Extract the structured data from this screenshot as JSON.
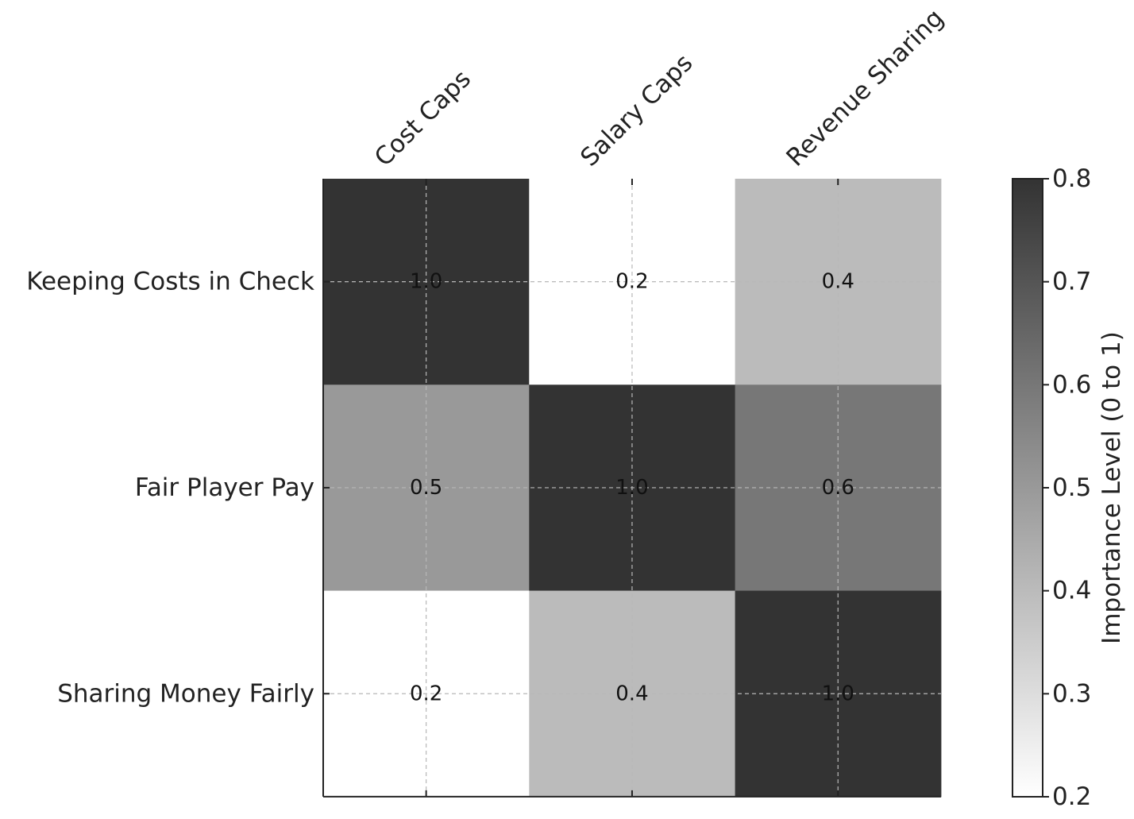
{
  "chart_data": {
    "type": "heatmap",
    "title": "",
    "columns": [
      "Cost Caps",
      "Salary Caps",
      "Revenue Sharing"
    ],
    "rows": [
      "Keeping Costs in Check",
      "Fair Player Pay",
      "Sharing Money Fairly"
    ],
    "values": [
      [
        1.0,
        0.2,
        0.4
      ],
      [
        0.5,
        1.0,
        0.6
      ],
      [
        0.2,
        0.4,
        1.0
      ]
    ],
    "cell_labels": [
      [
        "1.0",
        "0.2",
        "0.4"
      ],
      [
        "0.5",
        "1.0",
        "0.6"
      ],
      [
        "0.2",
        "0.4",
        "1.0"
      ]
    ],
    "colorbar": {
      "label": "Importance Level (0 to 1)",
      "range": [
        0.2,
        0.8
      ],
      "ticks": [
        0.2,
        0.3,
        0.4,
        0.5,
        0.6,
        0.7,
        0.8
      ],
      "tick_labels": [
        "0.2",
        "0.3",
        "0.4",
        "0.5",
        "0.6",
        "0.7",
        "0.8"
      ],
      "colormap": "grayscale",
      "low_color": "#ffffff",
      "high_color": "#333333"
    },
    "grid": true,
    "column_labels_position": "top"
  }
}
